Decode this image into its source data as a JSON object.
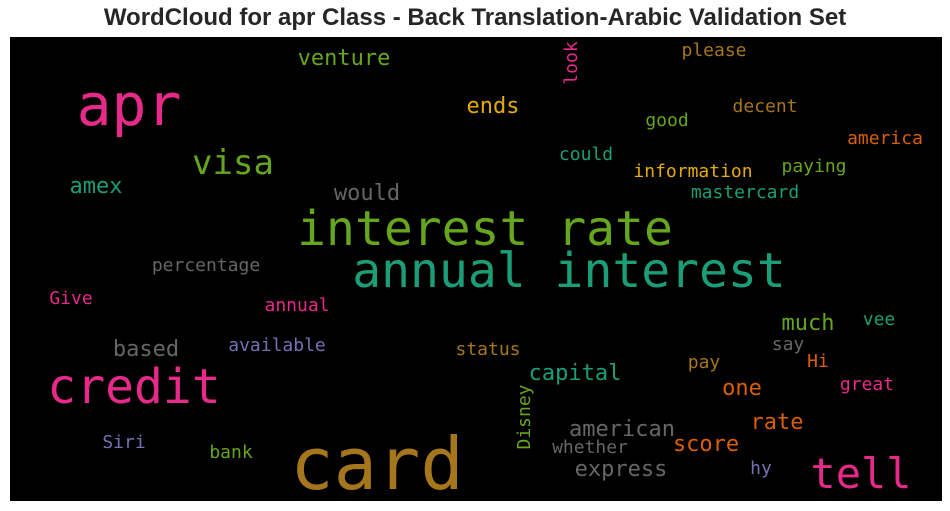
{
  "title": "WordCloud for apr Class - Back Translation-Arabic Validation Set",
  "colors": {
    "pink": "#e7298a",
    "green": "#66a61e",
    "teal": "#1b9e77",
    "orange": "#d95f02",
    "gold": "#e6ab02",
    "brown": "#a6761d",
    "gray": "#666666",
    "purple": "#7570b3"
  },
  "words": {
    "apr": "apr",
    "venture": "venture",
    "please": "please",
    "look": "look",
    "ends": "ends",
    "decent": "decent",
    "good": "good",
    "america": "america",
    "visa": "visa",
    "could": "could",
    "paying": "paying",
    "information": "information",
    "amex": "amex",
    "would": "would",
    "mastercard": "mastercard",
    "interest_rate": "interest rate",
    "annual_interest": "annual interest",
    "percentage": "percentage",
    "give": "Give",
    "annual": "annual",
    "much": "much",
    "vee": "vee",
    "based": "based",
    "available": "available",
    "status": "status",
    "say": "say",
    "credit": "credit",
    "capital": "capital",
    "pay": "pay",
    "hi": "Hi",
    "one": "one",
    "great": "great",
    "disney": "Disney",
    "american": "american",
    "rate": "rate",
    "siri": "Siri",
    "bank": "bank",
    "card": "card",
    "whether": "whether",
    "score": "score",
    "tell": "tell",
    "express": "express",
    "hy": "hy"
  }
}
